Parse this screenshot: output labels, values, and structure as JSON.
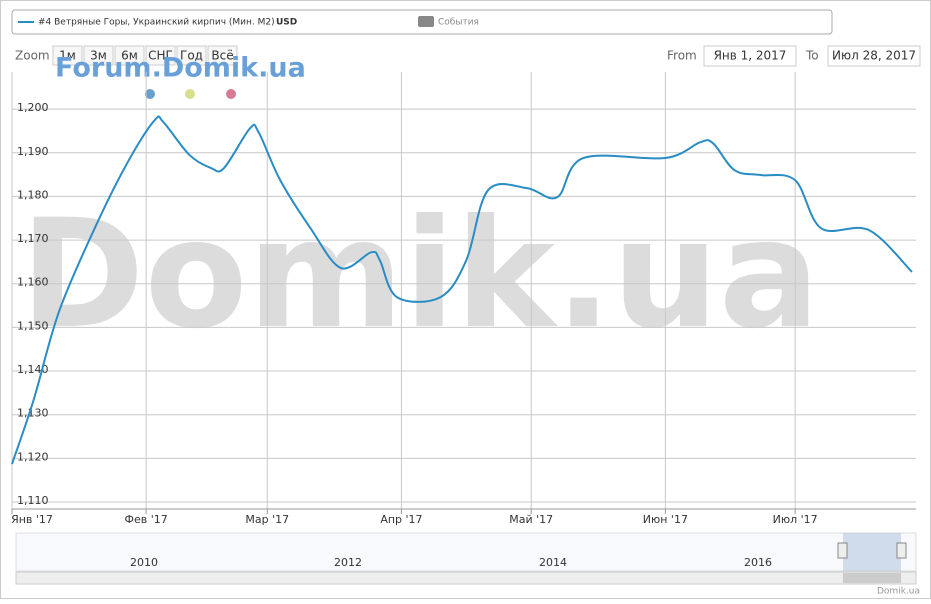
{
  "chart_data": {
    "type": "line",
    "series": [
      {
        "name": "#4 Ветряные Горы, Украинский кирпич (Мин. М2)",
        "unit": "USD",
        "color": "#2a8cc4",
        "x": [
          0,
          5,
          11,
          20,
          27,
          33,
          35,
          41,
          46,
          49,
          55,
          57,
          62,
          69,
          76,
          83,
          85,
          89,
          99,
          105,
          110,
          119,
          126,
          132,
          151,
          159,
          162,
          167,
          173,
          181,
          187,
          198,
          208
        ],
        "values": [
          1118.7,
          1133.4,
          1154,
          1174.6,
          1188.3,
          1197.5,
          1197,
          1189.5,
          1186.5,
          1186.5,
          1195.6,
          1194.7,
          1183.7,
          1172.7,
          1163.6,
          1167.2,
          1165.4,
          1156.9,
          1156.9,
          1165.4,
          1181.4,
          1181.9,
          1179.8,
          1188.8,
          1188.8,
          1192.4,
          1192.2,
          1186,
          1184.9,
          1183.7,
          1172.7,
          1172.3,
          1162.7
        ]
      }
    ],
    "xlim": [
      0,
      208
    ],
    "xticks": [
      {
        "value": 0,
        "label": "Янв '17"
      },
      {
        "value": 31,
        "label": "Фев '17"
      },
      {
        "value": 59,
        "label": "Мар '17"
      },
      {
        "value": 90,
        "label": "Апр '17"
      },
      {
        "value": 120,
        "label": "Май '17"
      },
      {
        "value": 151,
        "label": "Июн '17"
      },
      {
        "value": 181,
        "label": "Июл '17"
      }
    ],
    "ylim": [
      1108.4,
      1208.5
    ],
    "yticks": [
      {
        "value": 1110,
        "label": "1,110"
      },
      {
        "value": 1120,
        "label": "1,120"
      },
      {
        "value": 1130,
        "label": "1,130"
      },
      {
        "value": 1140,
        "label": "1,140"
      },
      {
        "value": 1150,
        "label": "1,150"
      },
      {
        "value": 1160,
        "label": "1,160"
      },
      {
        "value": 1170,
        "label": "1,170"
      },
      {
        "value": 1180,
        "label": "1,180"
      },
      {
        "value": 1190,
        "label": "1,190"
      },
      {
        "value": 1200,
        "label": "1,200"
      }
    ],
    "grid": true
  },
  "legend": {
    "events": "События"
  },
  "range_selector": {
    "zoom": "Zoom",
    "buttons": [
      "1м",
      "3м",
      "6м",
      "СНГ",
      "Год",
      "Всё"
    ],
    "from_label": "From",
    "from": "Янв 1, 2017",
    "to_label": "To",
    "to": "Июл 28, 2017"
  },
  "watermarks": {
    "forum": "Forum.Domik.ua",
    "main": "Domik.ua"
  },
  "navigator": {
    "years": [
      "2010",
      "2012",
      "2014",
      "2016"
    ]
  },
  "credits": "Domik.ua"
}
